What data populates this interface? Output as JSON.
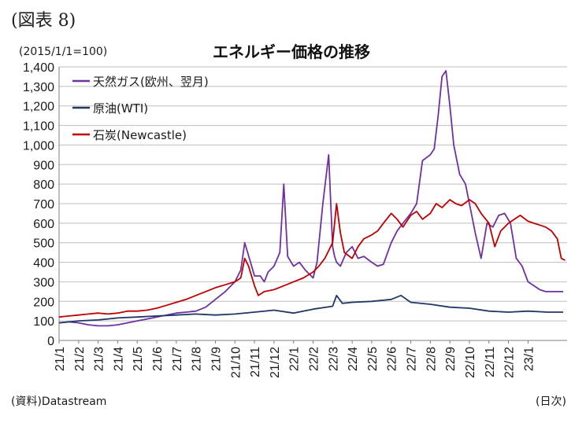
{
  "figure_label": "(図表 8)",
  "index_note": "(2015/1/1=100)",
  "source_note": "(資料)Datastream",
  "unit_note": "(日次)",
  "chart_data": {
    "type": "line",
    "title": "エネルギー価格の推移",
    "xlabel": "",
    "ylabel": "",
    "ylim": [
      0,
      1400
    ],
    "yticks": [
      0,
      100,
      200,
      300,
      400,
      500,
      600,
      700,
      800,
      900,
      1000,
      1100,
      1200,
      1300,
      1400
    ],
    "ytick_labels": [
      "0",
      "100",
      "200",
      "300",
      "400",
      "500",
      "600",
      "700",
      "800",
      "900",
      "1,000",
      "1,100",
      "1,200",
      "1,300",
      "1,400"
    ],
    "xlim": [
      0,
      26
    ],
    "xticks": [
      "21/1",
      "21/2",
      "21/3",
      "21/4",
      "21/5",
      "21/6",
      "21/7",
      "21/8",
      "21/9",
      "21/10",
      "21/11",
      "21/12",
      "22/1",
      "22/2",
      "22/3",
      "22/4",
      "22/5",
      "22/6",
      "22/7",
      "22/8",
      "22/9",
      "22/10",
      "22/11",
      "22/12",
      "23/1"
    ],
    "grid": true,
    "legend_position": "top-left",
    "series": [
      {
        "name": "天然ガス(欧州、翌月)",
        "color": "#7030a0",
        "x": [
          0,
          0.5,
          1,
          1.5,
          2,
          2.5,
          3,
          3.5,
          4,
          4.5,
          5,
          5.5,
          6,
          6.5,
          7,
          7.5,
          8,
          8.5,
          9,
          9.3,
          9.5,
          9.8,
          10,
          10.3,
          10.5,
          10.7,
          11,
          11.3,
          11.5,
          11.7,
          12,
          12.3,
          12.6,
          13,
          13.2,
          13.5,
          13.8,
          14,
          14.1,
          14.2,
          14.4,
          14.7,
          15,
          15.3,
          15.6,
          16,
          16.3,
          16.6,
          17,
          17.3,
          17.6,
          18,
          18.3,
          18.6,
          19,
          19.2,
          19.4,
          19.6,
          19.8,
          20,
          20.2,
          20.5,
          20.8,
          21,
          21.3,
          21.6,
          21.9,
          22.2,
          22.5,
          22.8,
          23.1,
          23.4,
          23.7,
          24,
          24.3,
          24.6,
          24.9,
          25.2,
          25.5,
          25.8
        ],
        "values": [
          90,
          95,
          90,
          80,
          75,
          75,
          80,
          90,
          100,
          110,
          120,
          130,
          140,
          145,
          150,
          170,
          210,
          250,
          300,
          360,
          500,
          400,
          330,
          330,
          300,
          350,
          380,
          450,
          800,
          430,
          380,
          400,
          360,
          320,
          400,
          700,
          950,
          480,
          430,
          400,
          380,
          450,
          480,
          420,
          430,
          400,
          380,
          390,
          500,
          560,
          600,
          650,
          700,
          920,
          950,
          980,
          1150,
          1350,
          1380,
          1200,
          1000,
          850,
          800,
          700,
          550,
          420,
          600,
          580,
          640,
          650,
          600,
          420,
          380,
          300,
          280,
          260,
          250,
          250,
          250,
          250
        ]
      },
      {
        "name": "原油(WTI)",
        "color": "#1f3864",
        "x": [
          0,
          1,
          2,
          3,
          4,
          5,
          6,
          7,
          8,
          9,
          10,
          11,
          12,
          13,
          14,
          14.2,
          14.5,
          15,
          16,
          17,
          17.5,
          18,
          19,
          20,
          21,
          22,
          23,
          24,
          25,
          25.8
        ],
        "values": [
          90,
          100,
          105,
          115,
          120,
          125,
          130,
          135,
          130,
          135,
          145,
          155,
          140,
          160,
          175,
          230,
          190,
          195,
          200,
          210,
          230,
          195,
          185,
          170,
          165,
          150,
          145,
          150,
          145,
          145
        ]
      },
      {
        "name": "石炭(Newcastle)",
        "color": "#c00000",
        "x": [
          0,
          0.5,
          1,
          1.5,
          2,
          2.5,
          3,
          3.5,
          4,
          4.5,
          5,
          5.5,
          6,
          6.5,
          7,
          7.5,
          8,
          8.5,
          9,
          9.3,
          9.5,
          9.7,
          10,
          10.2,
          10.5,
          11,
          11.5,
          12,
          12.5,
          13,
          13.3,
          13.6,
          14,
          14.2,
          14.4,
          14.6,
          15,
          15.3,
          15.6,
          16,
          16.3,
          16.6,
          17,
          17.3,
          17.6,
          18,
          18.3,
          18.6,
          19,
          19.3,
          19.6,
          20,
          20.3,
          20.6,
          21,
          21.3,
          21.6,
          22,
          22.3,
          22.6,
          23,
          23.3,
          23.6,
          24,
          24.3,
          24.6,
          24.9,
          25.2,
          25.5,
          25.7,
          25.9
        ],
        "values": [
          120,
          125,
          130,
          135,
          140,
          135,
          140,
          150,
          150,
          155,
          165,
          180,
          195,
          210,
          230,
          250,
          270,
          285,
          300,
          320,
          420,
          380,
          280,
          230,
          250,
          260,
          280,
          300,
          320,
          350,
          380,
          420,
          500,
          700,
          550,
          450,
          420,
          480,
          520,
          540,
          560,
          600,
          650,
          620,
          580,
          640,
          660,
          620,
          650,
          700,
          680,
          720,
          700,
          690,
          720,
          700,
          650,
          600,
          480,
          560,
          600,
          620,
          640,
          610,
          600,
          590,
          580,
          560,
          520,
          420,
          410
        ]
      }
    ]
  }
}
